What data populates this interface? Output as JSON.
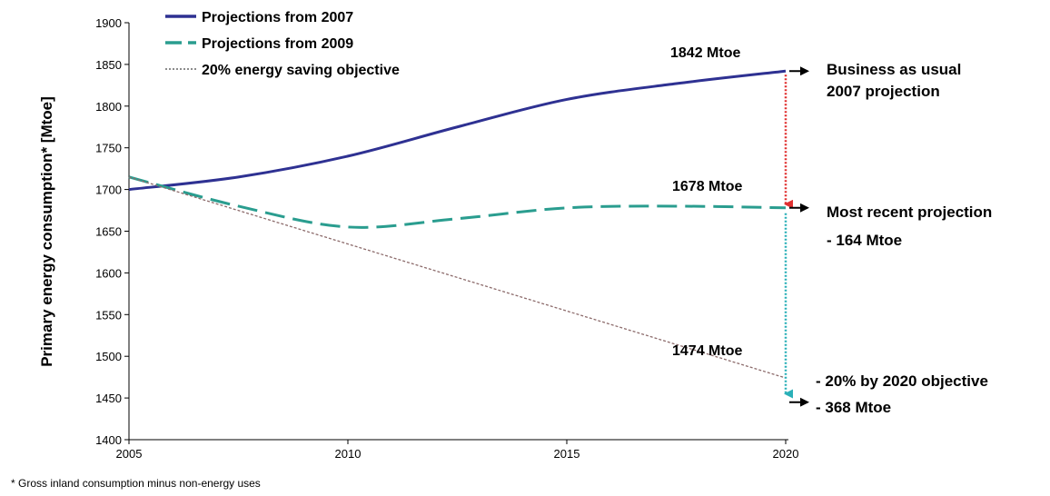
{
  "chart_data": {
    "type": "line",
    "title": "",
    "xlabel": "",
    "ylabel": "Primary energy consumption* [Mtoe]",
    "xlim": [
      2005,
      2020
    ],
    "ylim": [
      1400,
      1900
    ],
    "x_ticks": [
      2005,
      2010,
      2015,
      2020
    ],
    "y_ticks": [
      1400,
      1450,
      1500,
      1550,
      1600,
      1650,
      1700,
      1750,
      1800,
      1850,
      1900
    ],
    "grid": false,
    "legend_position": "top-left",
    "series": [
      {
        "name": "Projections from 2007",
        "style": "solid",
        "color": "#2e3192",
        "x": [
          2005,
          2007.5,
          2010,
          2012.5,
          2015,
          2017.5,
          2020
        ],
        "y": [
          1700,
          1715,
          1740,
          1775,
          1808,
          1827,
          1842
        ]
      },
      {
        "name": "Projections from 2009",
        "style": "dashed",
        "color": "#2a9d8f",
        "x": [
          2005,
          2007.5,
          2010,
          2012.5,
          2015,
          2017.5,
          2020
        ],
        "y": [
          1715,
          1680,
          1655,
          1665,
          1678,
          1680,
          1678
        ]
      },
      {
        "name": "20% energy saving objective",
        "style": "dotted",
        "color": "#8c6b6b",
        "x": [
          2005,
          2020
        ],
        "y": [
          1715,
          1474
        ]
      }
    ],
    "annotations": {
      "value_2007": "1842 Mtoe",
      "value_2009": "1678 Mtoe",
      "value_objective": "1474 Mtoe",
      "bau_line1": "Business as usual",
      "bau_line2": "2007 projection",
      "recent_line1": "Most recent projection",
      "recent_line2": "- 164 Mtoe",
      "objective_line1": "- 20% by 2020 objective",
      "objective_line2": "- 368 Mtoe"
    },
    "colors": {
      "red_arrow": "#e03030",
      "teal_arrow": "#2ab0b8",
      "black_arrow": "#000000"
    },
    "footnote": "*  Gross inland consumption minus non-energy uses"
  }
}
